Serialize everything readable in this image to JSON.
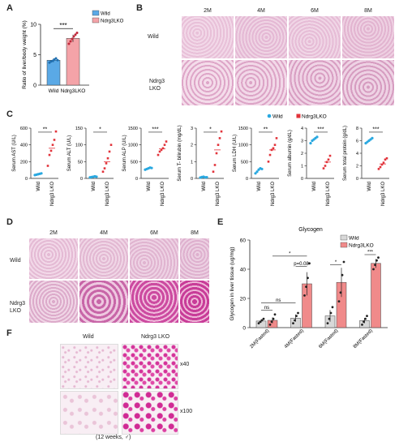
{
  "panels": {
    "A": "A",
    "B": "B",
    "C": "C",
    "D": "D",
    "E": "E",
    "F": "F"
  },
  "colors": {
    "wild": "#5aa9e6",
    "lko": "#f4a3a8",
    "lko_dot": "#e2333a",
    "wild_dot": "#29a8e0",
    "glyco_lko": "#f08a8a",
    "glyco_wild": "#d8d8d8"
  },
  "panelA": {
    "ylabel": "Ratio of liver/body weight (%)",
    "sig": "***",
    "legend": [
      {
        "name": "Wild"
      },
      {
        "name": "Ndrg3LKO"
      }
    ],
    "chart_data": {
      "type": "bar",
      "categories": [
        "Wild",
        "Ndrg3LKO"
      ],
      "values": [
        4.1,
        7.7
      ],
      "errors": [
        0.3,
        0.6
      ],
      "ylim": [
        0,
        10
      ],
      "yticks": [
        0,
        5,
        10
      ],
      "points": [
        [
          3.7,
          3.9,
          4.0,
          4.2,
          4.4,
          4.1
        ],
        [
          6.8,
          7.2,
          7.6,
          8.0,
          8.3,
          8.6
        ]
      ]
    }
  },
  "panelB": {
    "cols": [
      "2M",
      "4M",
      "6M",
      "8M"
    ],
    "rows": [
      "Wild",
      "Ndrg3\nLKO"
    ]
  },
  "panelC": {
    "legend": [
      {
        "name": "Wild"
      },
      {
        "name": "Ndrg3LKO"
      }
    ],
    "charts": [
      {
        "ylabel": "Serum AST (U/L)",
        "sig": "**",
        "ylim": [
          0,
          600
        ],
        "yticks": [
          0,
          200,
          400,
          600
        ],
        "wild": [
          40,
          45,
          50,
          55,
          60
        ],
        "lko": [
          150,
          280,
          330,
          400,
          460,
          560
        ],
        "lko_mean": 360
      },
      {
        "ylabel": "Serum ALT (U/L)",
        "sig": "*",
        "ylim": [
          0,
          150
        ],
        "yticks": [
          0,
          50,
          100,
          150
        ],
        "wild": [
          3,
          4,
          5,
          6,
          5
        ],
        "lko": [
          20,
          30,
          45,
          60,
          80,
          100
        ],
        "lko_mean": 50
      },
      {
        "ylabel": "Serum ALP (U/L)",
        "sig": "***",
        "ylim": [
          0,
          1500
        ],
        "yticks": [
          0,
          500,
          1000,
          1500
        ],
        "wild": [
          260,
          280,
          300,
          320,
          310
        ],
        "lko": [
          700,
          800,
          850,
          900,
          1000,
          1100
        ],
        "lko_mean": 880
      },
      {
        "ylabel": "Serum T- bilirubin (mg/dL)",
        "sig": "*",
        "ylim": [
          0,
          3
        ],
        "yticks": [
          0,
          1,
          2,
          3
        ],
        "wild": [
          0.05,
          0.08,
          0.1,
          0.06,
          0.07
        ],
        "lko": [
          0.4,
          0.8,
          1.5,
          2.0,
          2.4,
          2.8
        ],
        "lko_mean": 1.7
      },
      {
        "ylabel": "Serum LDH (U/L)",
        "sig": "**",
        "ylim": [
          0,
          1500
        ],
        "yticks": [
          0,
          500,
          1000,
          1500
        ],
        "wild": [
          150,
          200,
          260,
          300,
          280
        ],
        "lko": [
          500,
          700,
          850,
          900,
          1000,
          1200
        ],
        "lko_mean": 850
      },
      {
        "ylabel": "Serum albumin (g/dL)",
        "sig": "***",
        "ylim": [
          0,
          4
        ],
        "yticks": [
          0,
          1,
          2,
          3,
          4
        ],
        "wild": [
          2.8,
          3.0,
          3.1,
          3.2,
          3.3
        ],
        "lko": [
          0.8,
          1.0,
          1.3,
          1.5,
          1.8
        ],
        "lko_mean": 1.3
      },
      {
        "ylabel": "Serum total protein (g/dL)",
        "sig": "***",
        "ylim": [
          0,
          8
        ],
        "yticks": [
          0,
          2,
          4,
          6,
          8
        ],
        "wild": [
          5.6,
          5.8,
          6.0,
          6.2,
          6.4
        ],
        "lko": [
          1.5,
          1.8,
          2.2,
          2.5,
          3.0,
          3.2
        ],
        "lko_mean": 2.3
      }
    ],
    "xcats": [
      "Wild",
      "Ndrg3 LKO"
    ]
  },
  "panelD": {
    "cols": [
      "2M",
      "4M",
      "6M",
      "8M"
    ],
    "rows": [
      "Wild",
      "Ndrg3\nLKO"
    ]
  },
  "panelE": {
    "title": "Glycogen",
    "ylabel": "Glycogen in liver tissue (ug/mg)",
    "legend": [
      {
        "name": "Wild"
      },
      {
        "name": "Ndrg3LKO"
      }
    ],
    "chart_data": {
      "type": "bar",
      "categories": [
        "2M(Fasted)",
        "4M(Fasted)",
        "6M(Fasted)",
        "8M(Fasted)"
      ],
      "series": [
        {
          "name": "Wild",
          "values": [
            4.5,
            6.5,
            8,
            4.8
          ],
          "errors": [
            1.2,
            2.5,
            4,
            1.8
          ]
        },
        {
          "name": "Ndrg3LKO",
          "values": [
            5,
            30,
            31,
            44
          ],
          "errors": [
            2,
            8,
            10,
            3
          ]
        }
      ],
      "ylim": [
        0,
        60
      ],
      "yticks": [
        0,
        20,
        40,
        60
      ],
      "points_wild": [
        [
          3,
          4,
          5,
          6
        ],
        [
          3,
          5,
          8,
          10
        ],
        [
          3,
          6,
          10,
          14
        ],
        [
          2,
          4,
          6,
          8
        ]
      ],
      "points_lko": [
        [
          2,
          4,
          6,
          9
        ],
        [
          22,
          28,
          34,
          44
        ],
        [
          18,
          24,
          36,
          45
        ],
        [
          40,
          43,
          46,
          48
        ]
      ]
    },
    "annotations": [
      {
        "text": "ns"
      },
      {
        "text": "ns"
      },
      {
        "text": "*"
      },
      {
        "text": "p=0.08"
      },
      {
        "text": "*"
      },
      {
        "text": "***"
      }
    ]
  },
  "panelF": {
    "col_wild": "Wild",
    "col_lko": "Ndrg3 LKO",
    "mag1": "x40",
    "mag2": "x100",
    "caption": "(12 weeks, ♂)"
  }
}
